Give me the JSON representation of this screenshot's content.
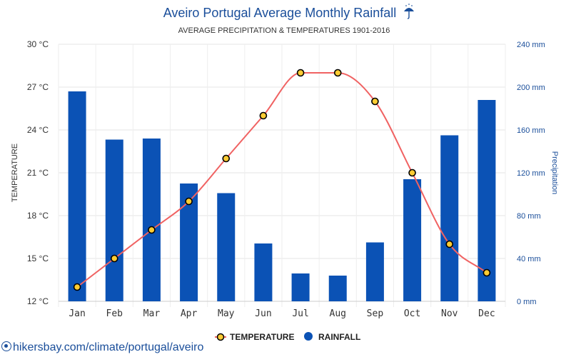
{
  "chart_data": {
    "type": "bar",
    "title": "Aveiro Portugal Average Monthly Rainfall",
    "title_icon": "umbrella-rain-icon",
    "subtitle": "AVERAGE PRECIPITATION & TEMPERATURES 1901-2016",
    "categories": [
      "Jan",
      "Feb",
      "Mar",
      "Apr",
      "May",
      "Jun",
      "Jul",
      "Aug",
      "Sep",
      "Oct",
      "Nov",
      "Dec"
    ],
    "series": [
      {
        "name": "TEMPERATURE",
        "type": "line",
        "axis": "left",
        "unit": "°C",
        "values": [
          13,
          15,
          17,
          19,
          22,
          25,
          28,
          28,
          26,
          21,
          16,
          14
        ],
        "color": "#f06262",
        "marker_fill": "#ffcc33",
        "marker_stroke": "#000000"
      },
      {
        "name": "RAINFALL",
        "type": "bar",
        "axis": "right",
        "unit": "mm",
        "values": [
          196,
          151,
          152,
          110,
          101,
          54,
          26,
          24,
          55,
          114,
          155,
          188
        ],
        "color": "#0b52b5"
      }
    ],
    "y_left": {
      "label": "TEMPERATURE",
      "range": [
        12,
        30
      ],
      "ticks": [
        12,
        15,
        18,
        21,
        24,
        27,
        30
      ],
      "tick_labels": [
        "12 °C",
        "15 °C",
        "18 °C",
        "21 °C",
        "24 °C",
        "27 °C",
        "30 °C"
      ]
    },
    "y_right": {
      "label": "Precipitation",
      "range": [
        0,
        240
      ],
      "ticks": [
        0,
        40,
        80,
        120,
        160,
        200,
        240
      ],
      "tick_labels": [
        "0 mm",
        "40 mm",
        "80 mm",
        "120 mm",
        "160 mm",
        "200 mm",
        "240 mm"
      ],
      "color": "#1a4e9a"
    },
    "grid": true,
    "legend": {
      "placement": "bottom",
      "items": [
        {
          "label": "TEMPERATURE",
          "marker": "line-circle"
        },
        {
          "label": "RAINFALL",
          "marker": "circle"
        }
      ]
    }
  },
  "footer": {
    "source_text": "hikersbay.com/climate/portugal/aveiro",
    "source_icon": "location-pin-icon"
  }
}
